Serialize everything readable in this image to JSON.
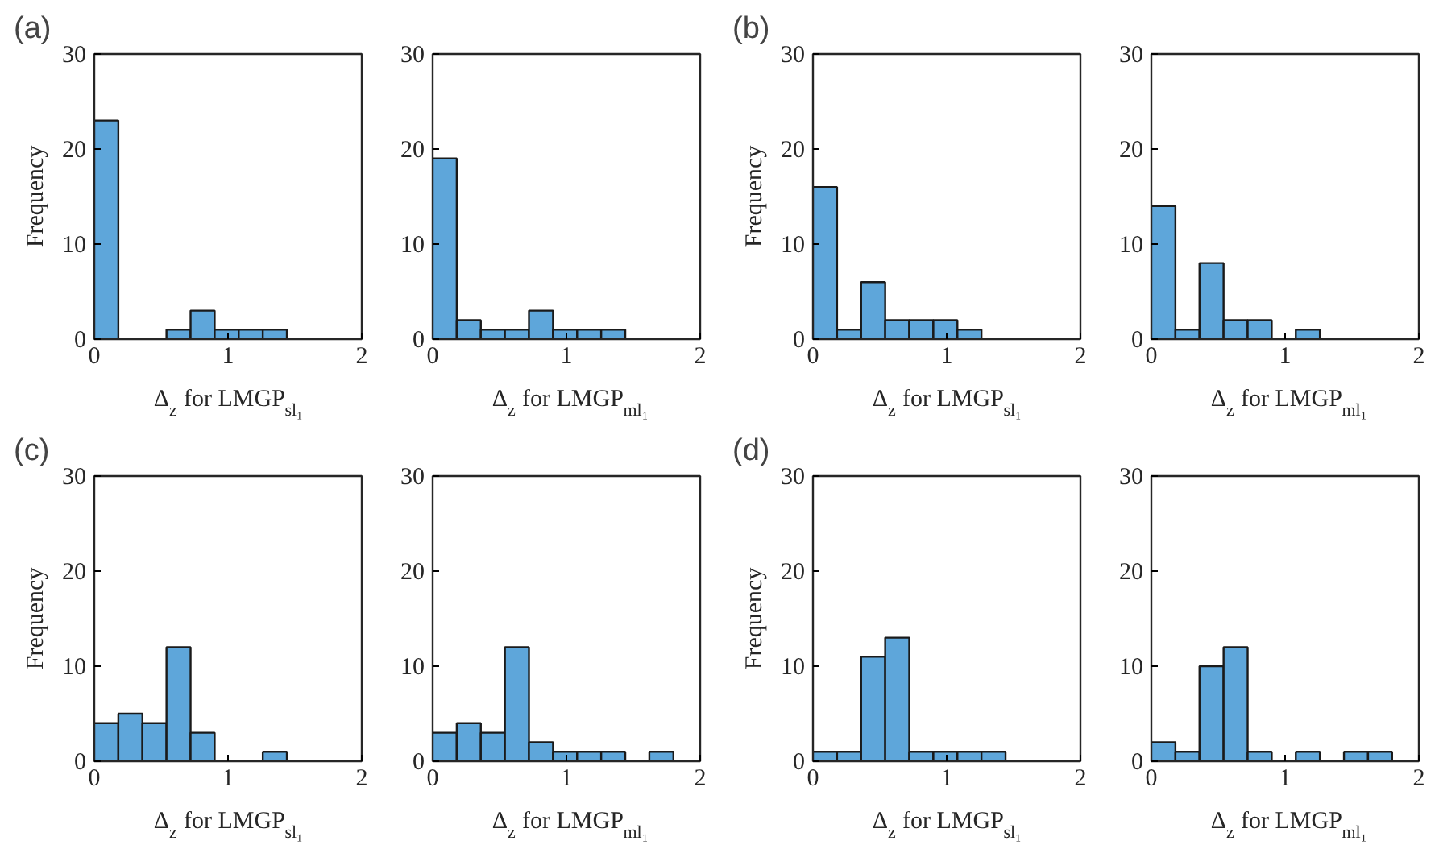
{
  "chart_data": [
    {
      "type": "histogram",
      "annotations": [
        "(a)"
      ],
      "ylabel": "Frequency",
      "xlabel": "Δ$_{z}$ for LMGP$_{sl₁}$",
      "bins": [
        0,
        0.18,
        0.36,
        0.54,
        0.72,
        0.9,
        1.08,
        1.26,
        1.44,
        1.62,
        1.8
      ],
      "values": [
        23,
        0,
        0,
        1,
        3,
        1,
        1,
        1,
        0,
        0
      ],
      "color": "#5ea6da",
      "xlim": [
        0,
        2
      ],
      "ylim": [
        0,
        30
      ],
      "xticks": [
        0,
        1,
        2
      ],
      "yticks": [
        0,
        10,
        20,
        30
      ],
      "grid": false
    },
    {
      "type": "histogram",
      "xlabel": "Δ$_{z}$ for LMGP$_{ml₁}$",
      "bins": [
        0,
        0.18,
        0.36,
        0.54,
        0.72,
        0.9,
        1.08,
        1.26,
        1.44,
        1.62,
        1.8
      ],
      "values": [
        19,
        2,
        1,
        1,
        3,
        1,
        1,
        1,
        0,
        0
      ],
      "color": "#5ea6da",
      "xlim": [
        0,
        2
      ],
      "ylim": [
        0,
        30
      ],
      "xticks": [
        0,
        1,
        2
      ],
      "yticks": [
        0,
        10,
        20,
        30
      ],
      "grid": false
    },
    {
      "type": "histogram",
      "annotations": [
        "(b)"
      ],
      "ylabel": "Frequency",
      "xlabel": "Δ$_{z}$ for LMGP$_{sl₁}$",
      "bins": [
        0,
        0.18,
        0.36,
        0.54,
        0.72,
        0.9,
        1.08,
        1.26,
        1.44,
        1.62,
        1.8
      ],
      "values": [
        16,
        1,
        6,
        2,
        2,
        2,
        1,
        0,
        0,
        0
      ],
      "color": "#5ea6da",
      "xlim": [
        0,
        2
      ],
      "ylim": [
        0,
        30
      ],
      "xticks": [
        0,
        1,
        2
      ],
      "yticks": [
        0,
        10,
        20,
        30
      ],
      "grid": false
    },
    {
      "type": "histogram",
      "xlabel": "Δ$_{z}$ for LMGP$_{ml₁}$",
      "bins": [
        0,
        0.18,
        0.36,
        0.54,
        0.72,
        0.9,
        1.08,
        1.26,
        1.44,
        1.62,
        1.8
      ],
      "values": [
        14,
        1,
        8,
        2,
        2,
        0,
        1,
        0,
        0,
        0
      ],
      "color": "#5ea6da",
      "xlim": [
        0,
        2
      ],
      "ylim": [
        0,
        30
      ],
      "xticks": [
        0,
        1,
        2
      ],
      "yticks": [
        0,
        10,
        20,
        30
      ],
      "grid": false
    },
    {
      "type": "histogram",
      "annotations": [
        "(c)"
      ],
      "ylabel": "Frequency",
      "xlabel": "Δ$_{z}$ for LMGP$_{sl₁}$",
      "bins": [
        0,
        0.18,
        0.36,
        0.54,
        0.72,
        0.9,
        1.08,
        1.26,
        1.44,
        1.62,
        1.8
      ],
      "values": [
        4,
        5,
        4,
        12,
        3,
        0,
        0,
        1,
        0,
        0
      ],
      "color": "#5ea6da",
      "xlim": [
        0,
        2
      ],
      "ylim": [
        0,
        30
      ],
      "xticks": [
        0,
        1,
        2
      ],
      "yticks": [
        0,
        10,
        20,
        30
      ],
      "grid": false
    },
    {
      "type": "histogram",
      "xlabel": "Δ$_{z}$ for LMGP$_{ml₁}$",
      "bins": [
        0,
        0.18,
        0.36,
        0.54,
        0.72,
        0.9,
        1.08,
        1.26,
        1.44,
        1.62,
        1.8
      ],
      "values": [
        3,
        4,
        3,
        12,
        2,
        1,
        1,
        1,
        0,
        1
      ],
      "color": "#5ea6da",
      "xlim": [
        0,
        2
      ],
      "ylim": [
        0,
        30
      ],
      "xticks": [
        0,
        1,
        2
      ],
      "yticks": [
        0,
        10,
        20,
        30
      ],
      "grid": false
    },
    {
      "type": "histogram",
      "annotations": [
        "(d)"
      ],
      "ylabel": "Frequency",
      "xlabel": "Δ$_{z}$ for LMGP$_{sl₁}$",
      "bins": [
        0,
        0.18,
        0.36,
        0.54,
        0.72,
        0.9,
        1.08,
        1.26,
        1.44,
        1.62,
        1.8
      ],
      "values": [
        1,
        1,
        11,
        13,
        1,
        1,
        1,
        1,
        0,
        0
      ],
      "color": "#5ea6da",
      "xlim": [
        0,
        2
      ],
      "ylim": [
        0,
        30
      ],
      "xticks": [
        0,
        1,
        2
      ],
      "yticks": [
        0,
        10,
        20,
        30
      ],
      "grid": false
    },
    {
      "type": "histogram",
      "xlabel": "Δ$_{z}$ for LMGP$_{ml₁}$",
      "bins": [
        0,
        0.18,
        0.36,
        0.54,
        0.72,
        0.9,
        1.08,
        1.26,
        1.44,
        1.62,
        1.8
      ],
      "values": [
        2,
        1,
        10,
        12,
        1,
        0,
        1,
        0,
        1,
        1
      ],
      "color": "#5ea6da",
      "xlim": [
        0,
        2
      ],
      "ylim": [
        0,
        30
      ],
      "xticks": [
        0,
        1,
        2
      ],
      "yticks": [
        0,
        10,
        20,
        30
      ],
      "grid": false
    }
  ]
}
